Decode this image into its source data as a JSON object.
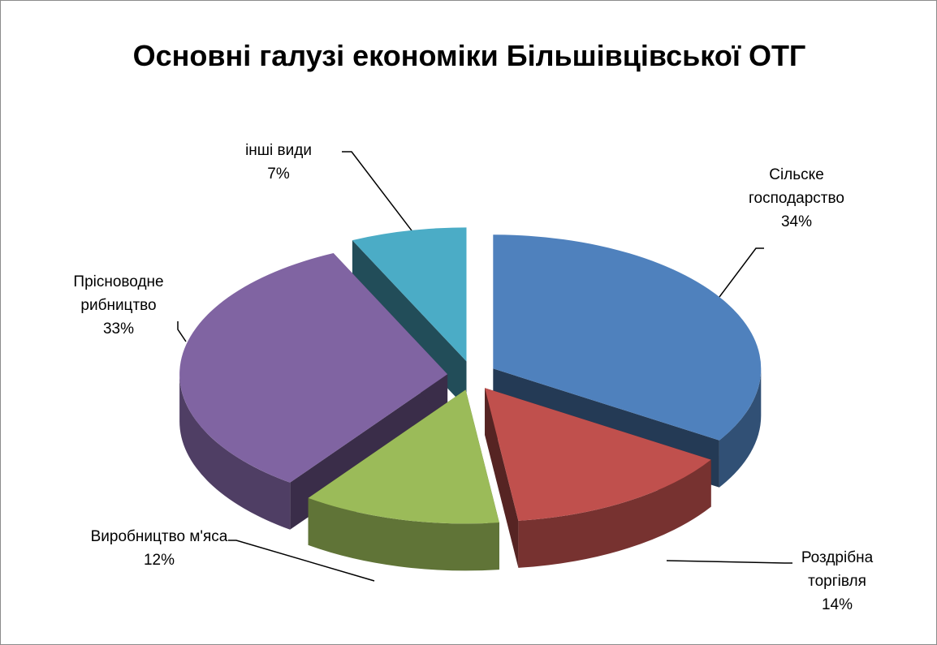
{
  "chart_data": {
    "type": "pie3d",
    "title": "Основні галузі економіки Більшівцівської ОТГ",
    "categories": [
      "Сільске господарство",
      "Роздрібна торгівля",
      "Виробництво м'яса",
      "Прісноводне рибництво",
      "інші види"
    ],
    "values": [
      34,
      14,
      12,
      33,
      7
    ],
    "value_labels": [
      "34%",
      "14%",
      "12%",
      "33%",
      "7%"
    ],
    "colors": [
      "#4f81bd",
      "#c0504d",
      "#9bbb59",
      "#8064a2",
      "#4bacc6"
    ]
  }
}
